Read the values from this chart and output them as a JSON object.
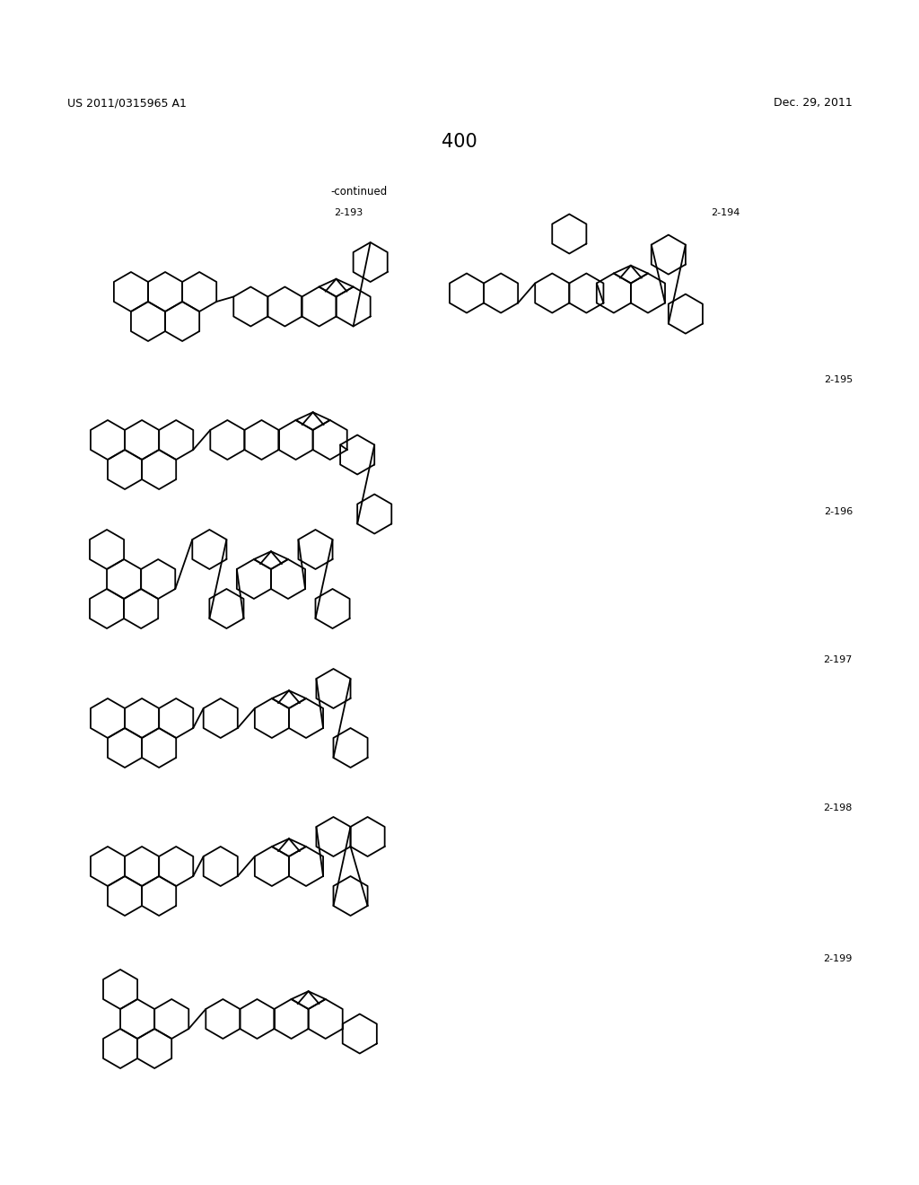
{
  "page_number": "400",
  "patent_number": "US 2011/0315965 A1",
  "date": "Dec. 29, 2011",
  "continued_label": "-continued",
  "label_193": "2-193",
  "label_194": "2-194",
  "label_195": "2-195",
  "label_196": "2-196",
  "label_197": "2-197",
  "label_198": "2-198",
  "label_199": "2-199",
  "bg": "#ffffff",
  "lc": "#000000",
  "lw": 1.3,
  "r": 22,
  "ao": 0
}
